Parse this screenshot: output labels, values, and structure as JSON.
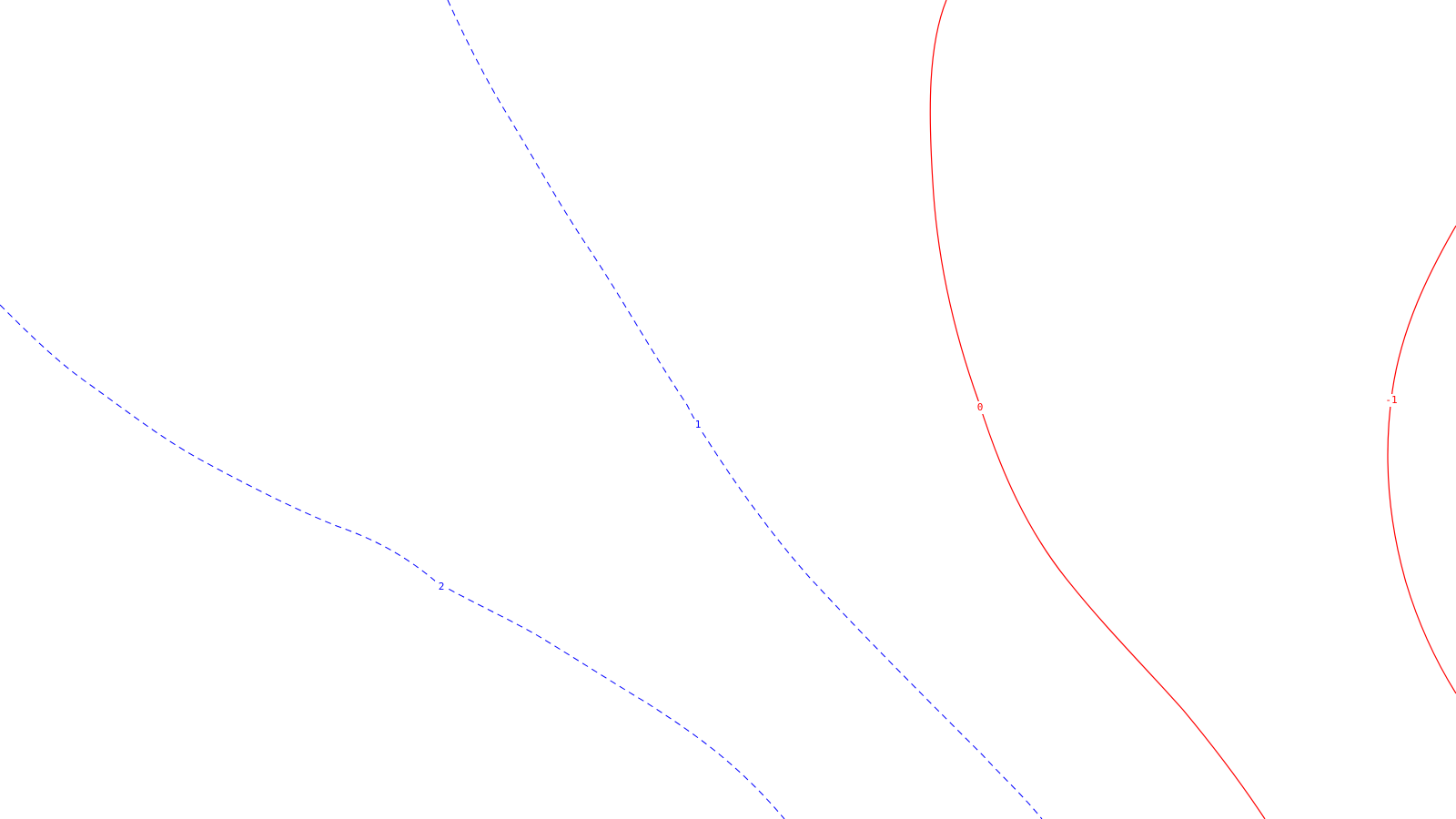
{
  "contours": [
    {
      "level_label": "2",
      "style": "dashed",
      "color": "#0000ff"
    },
    {
      "level_label": "1",
      "style": "dashed",
      "color": "#0000ff"
    },
    {
      "level_label": "0",
      "style": "solid",
      "color": "#ff0000"
    },
    {
      "level_label": "-1",
      "style": "solid",
      "color": "#ff0000"
    }
  ]
}
